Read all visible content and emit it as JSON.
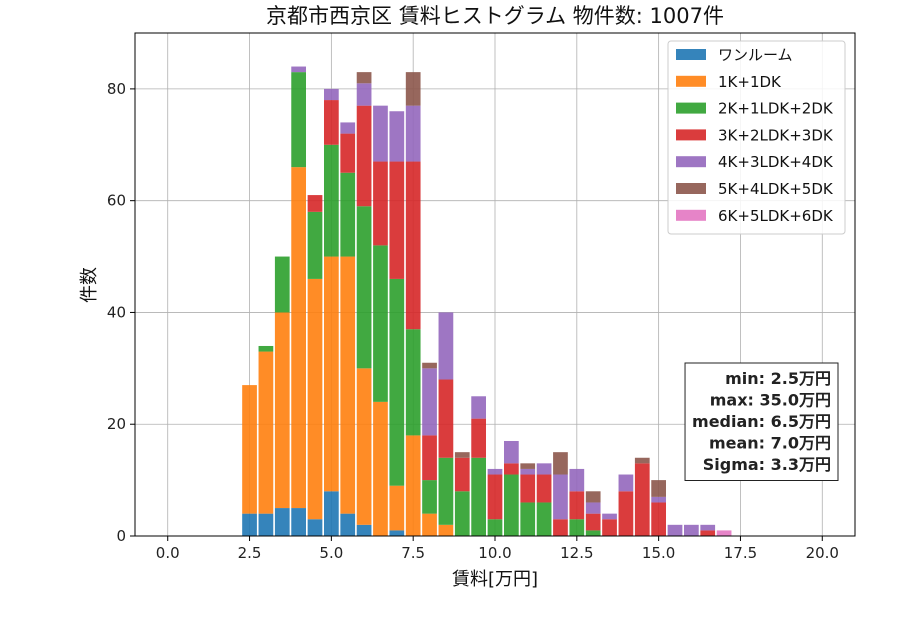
{
  "chart_data": {
    "type": "bar",
    "stacked": true,
    "title": "京都市西京区 賃料ヒストグラム 物件数: 1007件",
    "xlabel": "賃料[万円]",
    "ylabel": "件数",
    "xlim": [
      -1.0,
      21.0
    ],
    "ylim": [
      0,
      90
    ],
    "xticks": [
      "0.0",
      "2.5",
      "5.0",
      "7.5",
      "10.0",
      "12.5",
      "15.0",
      "17.5",
      "20.0"
    ],
    "yticks": [
      "0",
      "20",
      "40",
      "60",
      "80"
    ],
    "grid": true,
    "legend_position": "top-right",
    "bin_width": 0.5,
    "x": [
      2.5,
      3.0,
      3.5,
      4.0,
      4.5,
      5.0,
      5.5,
      6.0,
      6.5,
      7.0,
      7.5,
      8.0,
      8.5,
      9.0,
      9.5,
      10.0,
      10.5,
      11.0,
      11.5,
      12.0,
      12.5,
      13.0,
      13.5,
      14.0,
      14.5,
      15.0,
      15.5,
      16.0,
      16.5,
      17.0
    ],
    "series": [
      {
        "name": "ワンルーム",
        "color": "#1f77b4",
        "values": [
          4,
          4,
          5,
          5,
          3,
          8,
          4,
          2,
          0,
          1,
          0,
          0,
          0,
          0,
          0,
          0,
          0,
          0,
          0,
          0,
          0,
          0,
          0,
          0,
          0,
          0,
          0,
          0,
          0,
          0
        ]
      },
      {
        "name": "1K+1DK",
        "color": "#ff7f0e",
        "values": [
          23,
          29,
          35,
          61,
          43,
          42,
          46,
          28,
          24,
          8,
          18,
          4,
          2,
          0,
          0,
          0,
          0,
          0,
          0,
          0,
          0,
          0,
          0,
          0,
          0,
          0,
          0,
          0,
          0,
          0
        ]
      },
      {
        "name": "2K+1LDK+2DK",
        "color": "#2ca02c",
        "values": [
          0,
          1,
          10,
          17,
          12,
          20,
          15,
          29,
          28,
          37,
          19,
          6,
          12,
          8,
          14,
          3,
          11,
          6,
          6,
          0,
          3,
          1,
          0,
          0,
          0,
          0,
          0,
          0,
          0,
          0
        ]
      },
      {
        "name": "3K+2LDK+3DK",
        "color": "#d62728",
        "values": [
          0,
          0,
          0,
          0,
          3,
          8,
          7,
          18,
          15,
          21,
          30,
          8,
          14,
          6,
          7,
          8,
          2,
          5,
          5,
          3,
          5,
          3,
          3,
          8,
          13,
          6,
          0,
          0,
          1,
          0
        ]
      },
      {
        "name": "4K+3LDK+4DK",
        "color": "#9467bd",
        "values": [
          0,
          0,
          0,
          1,
          0,
          2,
          2,
          4,
          10,
          9,
          10,
          12,
          12,
          0,
          4,
          1,
          4,
          1,
          2,
          8,
          4,
          2,
          1,
          3,
          0,
          1,
          2,
          2,
          1,
          0
        ]
      },
      {
        "name": "5K+4LDK+5DK",
        "color": "#8c564b",
        "values": [
          0,
          0,
          0,
          0,
          0,
          0,
          0,
          2,
          0,
          0,
          6,
          1,
          0,
          1,
          0,
          0,
          0,
          1,
          0,
          4,
          0,
          2,
          0,
          0,
          1,
          3,
          0,
          0,
          0,
          0
        ]
      },
      {
        "name": "6K+5LDK+6DK",
        "color": "#e377c2",
        "values": [
          0,
          0,
          0,
          0,
          0,
          0,
          0,
          0,
          0,
          0,
          0,
          0,
          0,
          0,
          0,
          0,
          0,
          0,
          0,
          0,
          0,
          0,
          0,
          0,
          0,
          0,
          0,
          0,
          0,
          1
        ]
      }
    ],
    "annotation": {
      "lines": [
        "min: 2.5万円",
        "max: 35.0万円",
        "median: 6.5万円",
        "mean: 7.0万円",
        "Sigma: 3.3万円"
      ],
      "position": "right"
    }
  }
}
